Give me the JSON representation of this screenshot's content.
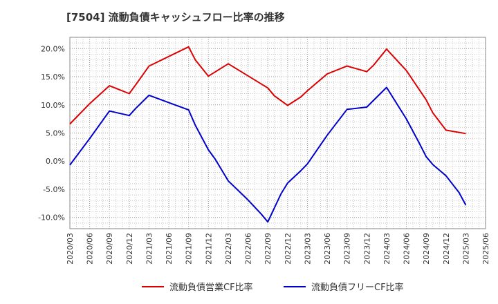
{
  "chart_data": {
    "type": "line",
    "title": "[7504]  流動負債キャッシュフロー比率の推移",
    "xlabel": "",
    "ylabel": "",
    "ylim": [
      -12,
      22
    ],
    "y_ticks": [
      -10,
      -5,
      0,
      5,
      10,
      15,
      20
    ],
    "y_tick_labels": [
      "-10.0%",
      "-5.0%",
      "0.0%",
      "5.0%",
      "10.0%",
      "15.0%",
      "20.0%"
    ],
    "x_ticks": [
      "2020/03",
      "2020/06",
      "2020/09",
      "2020/12",
      "2021/03",
      "2021/06",
      "2021/09",
      "2021/12",
      "2022/03",
      "2022/06",
      "2022/09",
      "2022/12",
      "2023/03",
      "2023/06",
      "2023/09",
      "2023/12",
      "2024/03",
      "2024/06",
      "2024/09",
      "2024/12",
      "2025/03",
      "2025/06"
    ],
    "grid": true,
    "legend_position": "bottom",
    "series": [
      {
        "name": "流動負債営業CF比率",
        "color": "#dd0000",
        "points": [
          [
            "2020/03",
            6.6
          ],
          [
            "2020/06",
            10.2
          ],
          [
            "2020/09",
            13.4
          ],
          [
            "2020/12",
            12.0
          ],
          [
            "2021/01",
            13.6
          ],
          [
            "2021/03",
            16.9
          ],
          [
            "2021/09",
            20.3
          ],
          [
            "2021/10",
            18.0
          ],
          [
            "2021/12",
            15.1
          ],
          [
            "2022/03",
            17.3
          ],
          [
            "2022/09",
            13.0
          ],
          [
            "2022/10",
            11.6
          ],
          [
            "2022/12",
            9.9
          ],
          [
            "2023/02",
            11.4
          ],
          [
            "2023/03",
            12.5
          ],
          [
            "2023/06",
            15.5
          ],
          [
            "2023/09",
            16.9
          ],
          [
            "2023/12",
            15.9
          ],
          [
            "2024/01",
            17.0
          ],
          [
            "2024/03",
            19.9
          ],
          [
            "2024/06",
            16.1
          ],
          [
            "2024/09",
            10.9
          ],
          [
            "2024/10",
            8.6
          ],
          [
            "2024/12",
            5.5
          ],
          [
            "2025/03",
            4.9
          ]
        ]
      },
      {
        "name": "流動負債フリーCF比率",
        "color": "#0000cc",
        "points": [
          [
            "2020/03",
            -0.7
          ],
          [
            "2020/06",
            4.0
          ],
          [
            "2020/09",
            8.9
          ],
          [
            "2020/12",
            8.1
          ],
          [
            "2021/01",
            9.4
          ],
          [
            "2021/03",
            11.7
          ],
          [
            "2021/09",
            9.1
          ],
          [
            "2021/10",
            6.4
          ],
          [
            "2021/12",
            2.0
          ],
          [
            "2022/01",
            0.4
          ],
          [
            "2022/03",
            -3.5
          ],
          [
            "2022/06",
            -6.9
          ],
          [
            "2022/08",
            -9.4
          ],
          [
            "2022/09",
            -10.8
          ],
          [
            "2022/10",
            -8.3
          ],
          [
            "2022/11",
            -5.8
          ],
          [
            "2022/12",
            -3.9
          ],
          [
            "2023/02",
            -1.7
          ],
          [
            "2023/03",
            -0.5
          ],
          [
            "2023/06",
            4.6
          ],
          [
            "2023/09",
            9.2
          ],
          [
            "2023/12",
            9.6
          ],
          [
            "2024/03",
            13.1
          ],
          [
            "2024/06",
            7.5
          ],
          [
            "2024/08",
            3.1
          ],
          [
            "2024/09",
            0.8
          ],
          [
            "2024/10",
            -0.6
          ],
          [
            "2024/12",
            -2.6
          ],
          [
            "2025/02",
            -5.6
          ],
          [
            "2025/03",
            -7.8
          ]
        ]
      }
    ]
  }
}
